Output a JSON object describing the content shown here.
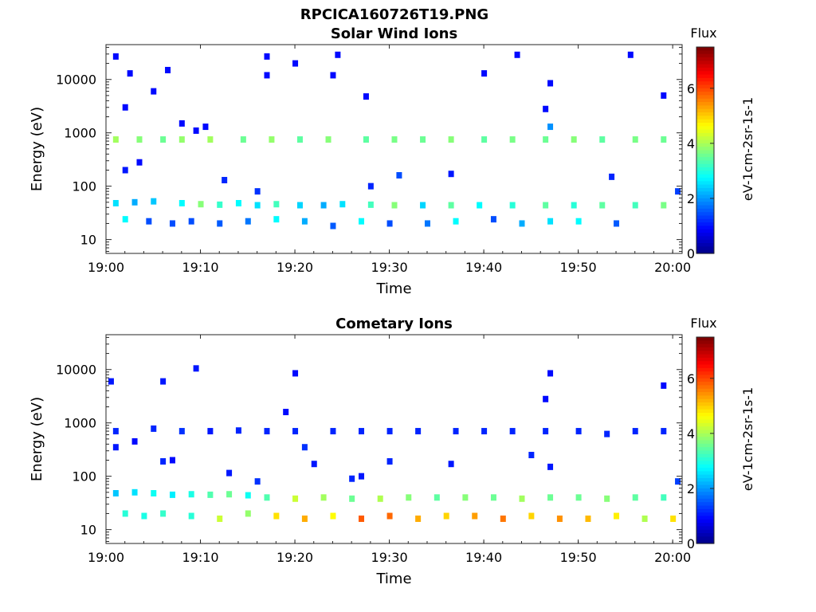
{
  "figure": {
    "title_line1": "RPCICA160726T19.PNG"
  },
  "colormap": [
    "#00007f",
    "#0000ff",
    "#0080ff",
    "#00ffff",
    "#80ff80",
    "#ffff00",
    "#ff8000",
    "#ff0000",
    "#7f0000"
  ],
  "chart_data": [
    {
      "type": "heatmap",
      "title": "Solar Wind Ions",
      "xlabel": "Time",
      "ylabel": "Energy (eV)",
      "x_tick_labels": [
        "19:00",
        "19:10",
        "19:20",
        "19:30",
        "19:40",
        "19:50",
        "20:00"
      ],
      "y_tick_labels": [
        "10",
        "100",
        "1000",
        "10000"
      ],
      "y_scale": "log",
      "xlim_minutes": [
        0,
        61
      ],
      "ylim": [
        5.5,
        45000
      ],
      "colorbar": {
        "title": "Flux",
        "label": "eV-1cm-2sr-1s-1",
        "ticks": [
          "0",
          "2",
          "4",
          "6"
        ],
        "range": [
          0,
          7.5
        ]
      },
      "cells": [
        [
          1,
          750,
          4
        ],
        [
          3.5,
          750,
          3.8
        ],
        [
          6,
          750,
          3.6
        ],
        [
          8,
          750,
          3.9
        ],
        [
          11,
          750,
          4
        ],
        [
          14.5,
          750,
          3.6
        ],
        [
          17.5,
          750,
          3.9
        ],
        [
          20.5,
          750,
          3.5
        ],
        [
          23.5,
          750,
          3.8
        ],
        [
          27.5,
          750,
          3.5
        ],
        [
          30.5,
          750,
          3.7
        ],
        [
          33.5,
          750,
          3.6
        ],
        [
          36.5,
          750,
          3.8
        ],
        [
          40,
          750,
          3.5
        ],
        [
          43,
          750,
          3.7
        ],
        [
          46.5,
          750,
          3.6
        ],
        [
          49.5,
          750,
          3.8
        ],
        [
          52.5,
          750,
          3.5
        ],
        [
          56,
          750,
          3.7
        ],
        [
          59,
          750,
          3.6
        ],
        [
          1,
          48,
          2.6
        ],
        [
          3,
          50,
          2.2
        ],
        [
          5,
          52,
          2.4
        ],
        [
          8,
          48,
          2.8
        ],
        [
          10,
          46,
          3.8
        ],
        [
          12,
          45,
          3.2
        ],
        [
          14,
          48,
          2.8
        ],
        [
          16,
          44,
          2.6
        ],
        [
          18,
          46,
          3.3
        ],
        [
          20.5,
          44,
          2.5
        ],
        [
          23,
          44,
          2.2
        ],
        [
          25,
          46,
          2.6
        ],
        [
          28,
          45,
          3.3
        ],
        [
          30.5,
          44,
          3.8
        ],
        [
          33.5,
          44,
          2.5
        ],
        [
          36.5,
          44,
          3.5
        ],
        [
          39.5,
          44,
          2.8
        ],
        [
          43,
          44,
          3.1
        ],
        [
          46.5,
          44,
          3.5
        ],
        [
          49.5,
          44,
          3.1
        ],
        [
          52.5,
          44,
          3.5
        ],
        [
          56,
          44,
          3.3
        ],
        [
          59,
          44,
          3.7
        ],
        [
          2,
          24,
          2.8
        ],
        [
          4.5,
          22,
          1.5
        ],
        [
          7,
          20,
          1.5
        ],
        [
          9,
          22,
          1.5
        ],
        [
          12,
          20,
          1.6
        ],
        [
          15,
          22,
          1.8
        ],
        [
          18,
          24,
          2.8
        ],
        [
          21,
          22,
          2.2
        ],
        [
          24,
          18,
          1.6
        ],
        [
          27,
          22,
          2.8
        ],
        [
          30,
          20,
          1.5
        ],
        [
          34,
          20,
          1.8
        ],
        [
          37,
          22,
          2.8
        ],
        [
          41,
          24,
          1.5
        ],
        [
          44,
          20,
          2.2
        ],
        [
          47,
          22,
          2.6
        ],
        [
          50,
          22,
          2.8
        ],
        [
          54,
          20,
          1.6
        ],
        [
          2,
          3000,
          1
        ],
        [
          5,
          6000,
          1
        ],
        [
          8,
          1500,
          1
        ],
        [
          9.5,
          1100,
          1
        ],
        [
          12.5,
          130,
          1.2
        ],
        [
          16,
          80,
          1.3
        ],
        [
          2,
          200,
          1.1
        ],
        [
          3.5,
          280,
          1
        ],
        [
          1,
          27000,
          1
        ],
        [
          17,
          27000,
          1
        ],
        [
          24.5,
          29000,
          1
        ],
        [
          43.5,
          29000,
          1
        ],
        [
          55.5,
          29000,
          1
        ],
        [
          2.5,
          13000,
          1
        ],
        [
          6.5,
          15000,
          1
        ],
        [
          17,
          12000,
          1
        ],
        [
          20,
          20000,
          1
        ],
        [
          24,
          12000,
          1
        ],
        [
          40,
          13000,
          1
        ],
        [
          47,
          8500,
          1
        ],
        [
          59,
          5000,
          1
        ],
        [
          27.5,
          4800,
          1
        ],
        [
          46.5,
          2800,
          1
        ],
        [
          10.5,
          1300,
          1
        ],
        [
          28,
          100,
          1.2
        ],
        [
          36.5,
          170,
          1.1
        ],
        [
          31,
          160,
          1.5
        ],
        [
          47,
          1300,
          2
        ],
        [
          53.5,
          150,
          1.2
        ],
        [
          60.5,
          80,
          1.4
        ]
      ]
    },
    {
      "type": "heatmap",
      "title": "Cometary Ions",
      "xlabel": "Time",
      "ylabel": "Energy (eV)",
      "x_tick_labels": [
        "19:00",
        "19:10",
        "19:20",
        "19:30",
        "19:40",
        "19:50",
        "20:00"
      ],
      "y_tick_labels": [
        "10",
        "100",
        "1000",
        "10000"
      ],
      "y_scale": "log",
      "xlim_minutes": [
        0,
        61
      ],
      "ylim": [
        5.5,
        45000
      ],
      "colorbar": {
        "title": "Flux",
        "label": "eV-1cm-2sr-1s-1",
        "ticks": [
          "0",
          "2",
          "4",
          "6"
        ],
        "range": [
          0,
          7.5
        ]
      },
      "cells": [
        [
          1,
          48,
          2.4
        ],
        [
          3,
          50,
          2.6
        ],
        [
          5,
          48,
          2.9
        ],
        [
          7,
          45,
          2.7
        ],
        [
          9,
          46,
          3
        ],
        [
          11,
          45,
          3.4
        ],
        [
          13,
          46,
          3.6
        ],
        [
          15,
          44,
          2.9
        ],
        [
          17,
          40,
          3.4
        ],
        [
          20,
          38,
          4.3
        ],
        [
          23,
          40,
          4
        ],
        [
          26,
          38,
          3.6
        ],
        [
          29,
          38,
          4.1
        ],
        [
          32,
          40,
          3.8
        ],
        [
          35,
          40,
          3.5
        ],
        [
          38,
          40,
          3.8
        ],
        [
          41,
          40,
          3.6
        ],
        [
          44,
          38,
          4
        ],
        [
          47,
          40,
          3.6
        ],
        [
          50,
          40,
          3.6
        ],
        [
          53,
          38,
          3.8
        ],
        [
          56,
          40,
          3.5
        ],
        [
          59,
          40,
          3.3
        ],
        [
          2,
          20,
          3.1
        ],
        [
          4,
          18,
          3
        ],
        [
          6,
          20,
          3.2
        ],
        [
          9,
          18,
          3.1
        ],
        [
          12,
          16,
          4.3
        ],
        [
          15,
          20,
          3.9
        ],
        [
          18,
          18,
          4.9
        ],
        [
          21,
          16,
          5.3
        ],
        [
          24,
          18,
          4.7
        ],
        [
          27,
          16,
          5.9
        ],
        [
          30,
          18,
          5.8
        ],
        [
          33,
          16,
          5.3
        ],
        [
          36,
          18,
          5
        ],
        [
          39,
          18,
          5.4
        ],
        [
          42,
          16,
          5.7
        ],
        [
          45,
          18,
          5
        ],
        [
          48,
          16,
          5.5
        ],
        [
          51,
          16,
          5.2
        ],
        [
          54,
          18,
          4.8
        ],
        [
          57,
          16,
          4.1
        ],
        [
          60,
          16,
          4.9
        ],
        [
          1,
          700,
          1.2
        ],
        [
          5,
          780,
          1.2
        ],
        [
          8,
          700,
          1.3
        ],
        [
          11,
          700,
          1.1
        ],
        [
          14,
          720,
          1.2
        ],
        [
          17,
          700,
          1.2
        ],
        [
          20,
          700,
          1.2
        ],
        [
          24,
          700,
          1.2
        ],
        [
          27,
          700,
          1.2
        ],
        [
          30,
          700,
          1.2
        ],
        [
          33,
          700,
          1.2
        ],
        [
          37,
          700,
          1.2
        ],
        [
          40,
          700,
          1.2
        ],
        [
          43,
          700,
          1.2
        ],
        [
          46.5,
          700,
          1.2
        ],
        [
          50,
          700,
          1.2
        ],
        [
          53,
          620,
          1.2
        ],
        [
          56,
          700,
          1.2
        ],
        [
          59,
          700,
          1.2
        ],
        [
          0.5,
          6000,
          1.1
        ],
        [
          6,
          6000,
          1.1
        ],
        [
          9.5,
          10500,
          1.1
        ],
        [
          20,
          8500,
          1
        ],
        [
          47,
          8500,
          1
        ],
        [
          59,
          5000,
          1
        ],
        [
          16,
          80,
          1.3
        ],
        [
          19,
          1600,
          1
        ],
        [
          1,
          350,
          1.1
        ],
        [
          3,
          450,
          1
        ],
        [
          6,
          190,
          1.2
        ],
        [
          7,
          200,
          1
        ],
        [
          13,
          115,
          1.1
        ],
        [
          21,
          350,
          1.3
        ],
        [
          22,
          170,
          1.1
        ],
        [
          26,
          90,
          1.2
        ],
        [
          27,
          100,
          1.1
        ],
        [
          30,
          190,
          1.2
        ],
        [
          36.5,
          170,
          1.1
        ],
        [
          45,
          250,
          1.2
        ],
        [
          47,
          150,
          1.1
        ],
        [
          60.5,
          80,
          1.4
        ],
        [
          46.5,
          2800,
          1
        ]
      ]
    }
  ]
}
